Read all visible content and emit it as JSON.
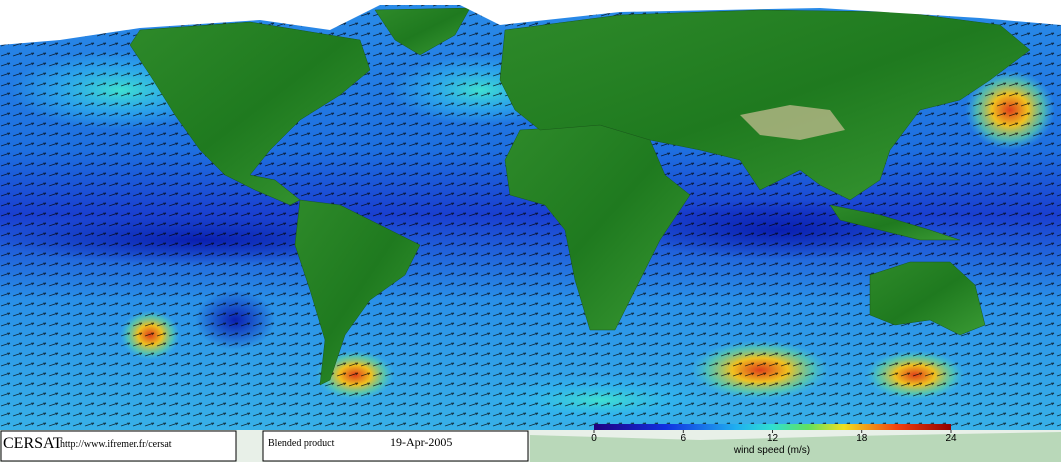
{
  "footer": {
    "logo": "CERSAT",
    "url": "http://www.ifremer.fr/cersat",
    "product": "Blended product",
    "date": "19-Apr-2005"
  },
  "colorbar": {
    "label": "wind speed (m/s)",
    "range": [
      0,
      24
    ],
    "ticks": [
      0,
      6,
      12,
      18,
      24
    ]
  }
}
